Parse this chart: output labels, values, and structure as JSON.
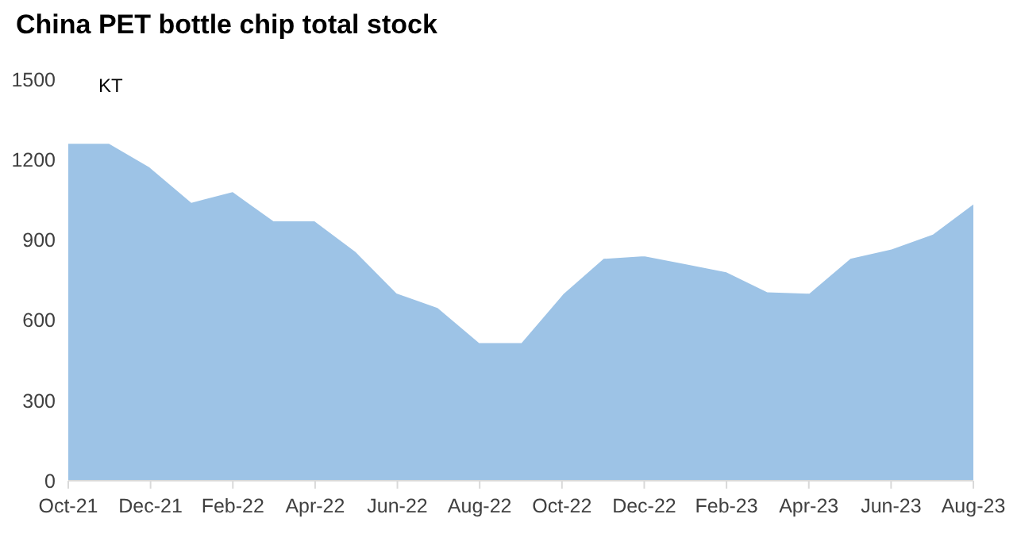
{
  "chart_data": {
    "type": "area",
    "title": "China PET bottle chip total stock",
    "ylabel": "KT",
    "categories": [
      "Oct-21",
      null,
      "Dec-21",
      null,
      "Feb-22",
      null,
      "Apr-22",
      null,
      "Jun-22",
      null,
      "Aug-22",
      null,
      "Oct-22",
      null,
      "Dec-22",
      null,
      "Feb-23",
      null,
      "Apr-23",
      null,
      "Jun-23",
      null,
      "Aug-23"
    ],
    "values": [
      1265,
      1265,
      1175,
      1045,
      1085,
      975,
      975,
      860,
      705,
      650,
      520,
      520,
      700,
      835,
      845,
      815,
      785,
      710,
      705,
      835,
      870,
      925,
      1040
    ],
    "color": "#9dc3e6",
    "ylim": [
      0,
      1500
    ],
    "yticks": [
      0,
      300,
      600,
      900,
      1200,
      1500
    ]
  }
}
